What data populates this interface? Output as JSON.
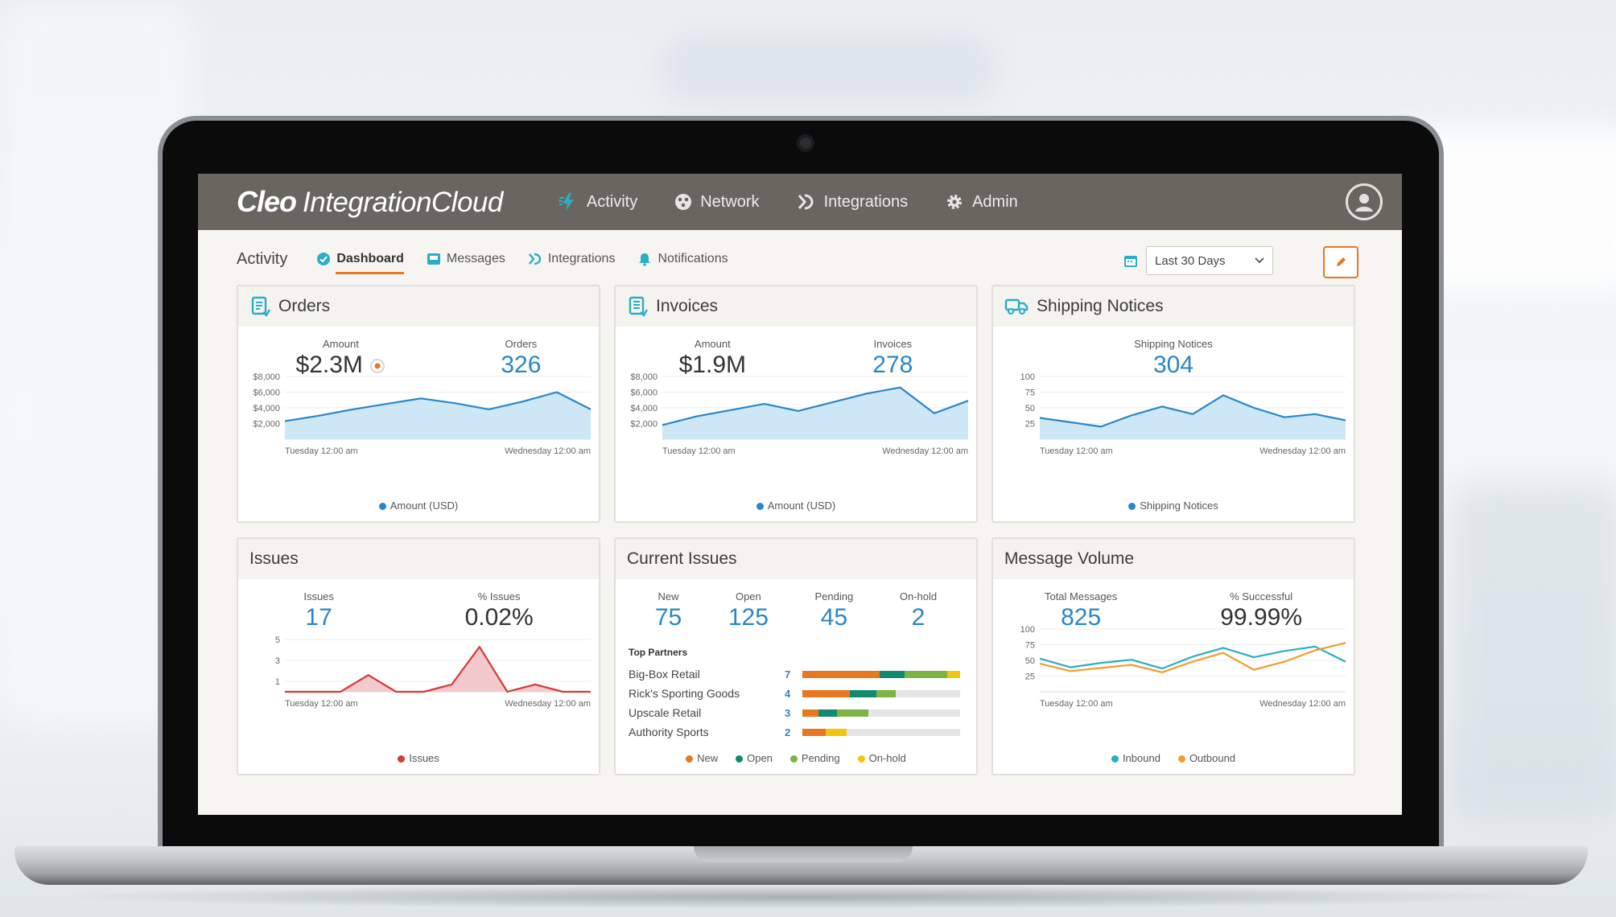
{
  "header": {
    "logo_bold": "Cleo",
    "logo_light": "IntegrationCloud",
    "nav": [
      {
        "label": "Activity",
        "icon": "bolt-icon"
      },
      {
        "label": "Network",
        "icon": "network-icon"
      },
      {
        "label": "Integrations",
        "icon": "integrations-icon"
      },
      {
        "label": "Admin",
        "icon": "gear-icon"
      }
    ]
  },
  "subnav": {
    "title": "Activity",
    "tabs": [
      {
        "label": "Dashboard",
        "active": true
      },
      {
        "label": "Messages"
      },
      {
        "label": "Integrations"
      },
      {
        "label": "Notifications"
      }
    ],
    "date_range": "Last 30 Days"
  },
  "colors": {
    "accent": "#e87722",
    "blue": "#2a86c8",
    "area": "#cde7f6",
    "red": "#d6393b",
    "teal": "#2aaec4",
    "green": "#0f8a6c",
    "lime": "#7cb342",
    "yellow": "#f1c40f"
  },
  "cards": {
    "orders": {
      "title": "Orders",
      "stats": [
        {
          "label": "Amount",
          "value": "$2.3M"
        },
        {
          "label": "Orders",
          "value": "326"
        }
      ],
      "legend": "Amount (USD)"
    },
    "invoices": {
      "title": "Invoices",
      "stats": [
        {
          "label": "Amount",
          "value": "$1.9M"
        },
        {
          "label": "Invoices",
          "value": "278"
        }
      ],
      "legend": "Amount (USD)"
    },
    "shipping": {
      "title": "Shipping Notices",
      "stats": [
        {
          "label": "Shipping Notices",
          "value": "304"
        }
      ],
      "legend": "Shipping Notices"
    },
    "issues": {
      "title": "Issues",
      "stats": [
        {
          "label": "Issues",
          "value": "17"
        },
        {
          "label": "% Issues",
          "value": "0.02%"
        }
      ],
      "legend": "Issues"
    },
    "current_issues": {
      "title": "Current Issues",
      "stats": [
        {
          "label": "New",
          "value": "75"
        },
        {
          "label": "Open",
          "value": "125"
        },
        {
          "label": "Pending",
          "value": "45"
        },
        {
          "label": "On-hold",
          "value": "2"
        }
      ],
      "partners_title": "Top Partners",
      "partners": [
        {
          "name": "Big-Box Retail",
          "count": "7",
          "new": 0.49,
          "open": 0.16,
          "pending": 0.27,
          "onhold": 0.08
        },
        {
          "name": "Rick's Sporting Goods",
          "count": "4",
          "new": 0.3,
          "open": 0.17,
          "pending": 0.12,
          "onhold": 0
        },
        {
          "name": "Upscale Retail",
          "count": "3",
          "new": 0.1,
          "open": 0.12,
          "pending": 0.2,
          "onhold": 0
        },
        {
          "name": "Authority Sports",
          "count": "2",
          "new": 0.15,
          "open": 0,
          "pending": 0,
          "onhold": 0.13
        }
      ],
      "legend": [
        "New",
        "Open",
        "Pending",
        "On-hold"
      ]
    },
    "message_volume": {
      "title": "Message Volume",
      "stats": [
        {
          "label": "Total Messages",
          "value": "825"
        },
        {
          "label": "% Successful",
          "value": "99.99%"
        }
      ],
      "legend": [
        "Inbound",
        "Outbound"
      ]
    }
  },
  "chart_data": [
    {
      "type": "area",
      "title": "Orders",
      "x_start": "Tuesday 12:00 am",
      "x_end": "Wednesday 12:00 am",
      "y_ticks": [
        "$8,000",
        "$6,000",
        "$4,000",
        "$2,000"
      ],
      "ylim": [
        0,
        8000
      ],
      "series": [
        {
          "name": "Amount (USD)",
          "values": [
            2300,
            3000,
            3800,
            4500,
            5200,
            4600,
            3800,
            4800,
            6000,
            3800
          ]
        }
      ]
    },
    {
      "type": "area",
      "title": "Invoices",
      "x_start": "Tuesday 12:00 am",
      "x_end": "Wednesday 12:00 am",
      "y_ticks": [
        "$8,000",
        "$6,000",
        "$4,000",
        "$2,000"
      ],
      "ylim": [
        0,
        8000
      ],
      "series": [
        {
          "name": "Amount (USD)",
          "values": [
            1800,
            2900,
            3700,
            4500,
            3600,
            4700,
            5800,
            6600,
            3300,
            4900
          ]
        }
      ]
    },
    {
      "type": "area",
      "title": "Shipping Notices",
      "x_start": "Tuesday 12:00 am",
      "x_end": "Wednesday 12:00 am",
      "y_ticks": [
        "100",
        "75",
        "50",
        "25"
      ],
      "ylim": [
        0,
        100
      ],
      "series": [
        {
          "name": "Shipping Notices",
          "values": [
            34,
            27,
            20,
            38,
            52,
            40,
            70,
            50,
            35,
            40,
            30
          ]
        }
      ]
    },
    {
      "type": "area",
      "title": "Issues",
      "x_start": "Tuesday 12:00 am",
      "x_end": "Wednesday 12:00 am",
      "y_ticks": [
        "5",
        "3",
        "1"
      ],
      "ylim": [
        0,
        6
      ],
      "series": [
        {
          "name": "Issues",
          "values": [
            0,
            0,
            0,
            1.6,
            0,
            0,
            0.7,
            4.3,
            0,
            0.7,
            0,
            0
          ]
        }
      ]
    },
    {
      "type": "line",
      "title": "Message Volume",
      "x_start": "Tuesday 12:00 am",
      "x_end": "Wednesday 12:00 am",
      "y_ticks": [
        "100",
        "75",
        "50",
        "25"
      ],
      "ylim": [
        0,
        100
      ],
      "series": [
        {
          "name": "Inbound",
          "values": [
            53,
            39,
            46,
            51,
            37,
            56,
            70,
            55,
            65,
            72,
            48
          ]
        },
        {
          "name": "Outbound",
          "values": [
            45,
            33,
            38,
            43,
            31,
            48,
            62,
            35,
            48,
            66,
            78
          ]
        }
      ]
    }
  ]
}
